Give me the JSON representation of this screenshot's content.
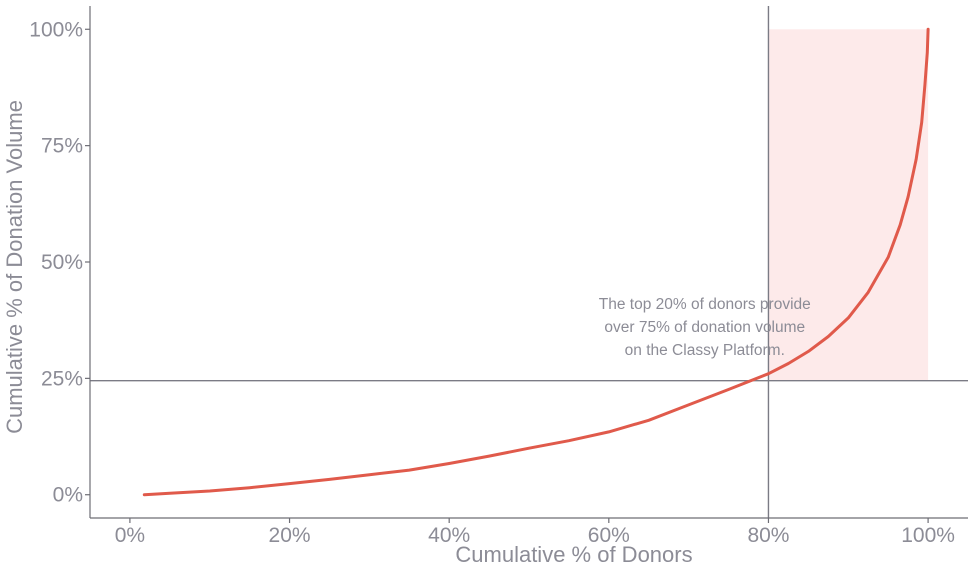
{
  "chart_data": {
    "type": "line",
    "title": "",
    "xlabel": "Cumulative % of Donors",
    "ylabel": "Cumulative % of Donation Volume",
    "xlim": [
      -5,
      105
    ],
    "ylim": [
      -5,
      105
    ],
    "x_ticks": [
      0,
      20,
      40,
      60,
      80,
      100
    ],
    "x_tick_labels": [
      "0%",
      "20%",
      "40%",
      "60%",
      "80%",
      "100%"
    ],
    "y_ticks": [
      0,
      25,
      50,
      75,
      100
    ],
    "y_tick_labels": [
      "0%",
      "25%",
      "50%",
      "75%",
      "100%"
    ],
    "grid": false,
    "series": [
      {
        "color": "#e05a4b",
        "x": [
          1.8,
          5,
          10,
          15,
          20,
          25,
          30,
          35,
          40,
          45,
          50,
          55,
          60,
          65,
          70,
          75,
          80,
          82.5,
          85,
          87.5,
          90,
          92.5,
          95,
          96.5,
          97.5,
          98.5,
          99.2,
          99.6,
          99.9,
          100
        ],
        "y": [
          0,
          0.3,
          0.8,
          1.5,
          2.4,
          3.3,
          4.3,
          5.3,
          6.7,
          8.3,
          10,
          11.6,
          13.5,
          16,
          19.3,
          22.6,
          26,
          28.2,
          30.8,
          34,
          38,
          43.5,
          51,
          58,
          64,
          72,
          80,
          88,
          95,
          100
        ]
      }
    ],
    "reference_lines": {
      "vertical_x": 80,
      "horizontal_y": 24.5,
      "color": "#7b7b85"
    },
    "highlight_region": {
      "x": [
        80,
        100
      ],
      "y": [
        24.5,
        100
      ],
      "color": "#fdeaea"
    },
    "annotation": {
      "lines": [
        "The top 20% of donors provide",
        "over 75% of donation volume",
        "on the Classy Platform."
      ],
      "x": 62,
      "y": 40
    },
    "text_color": "#8c8c96",
    "axis_color": "#6d6d75"
  }
}
